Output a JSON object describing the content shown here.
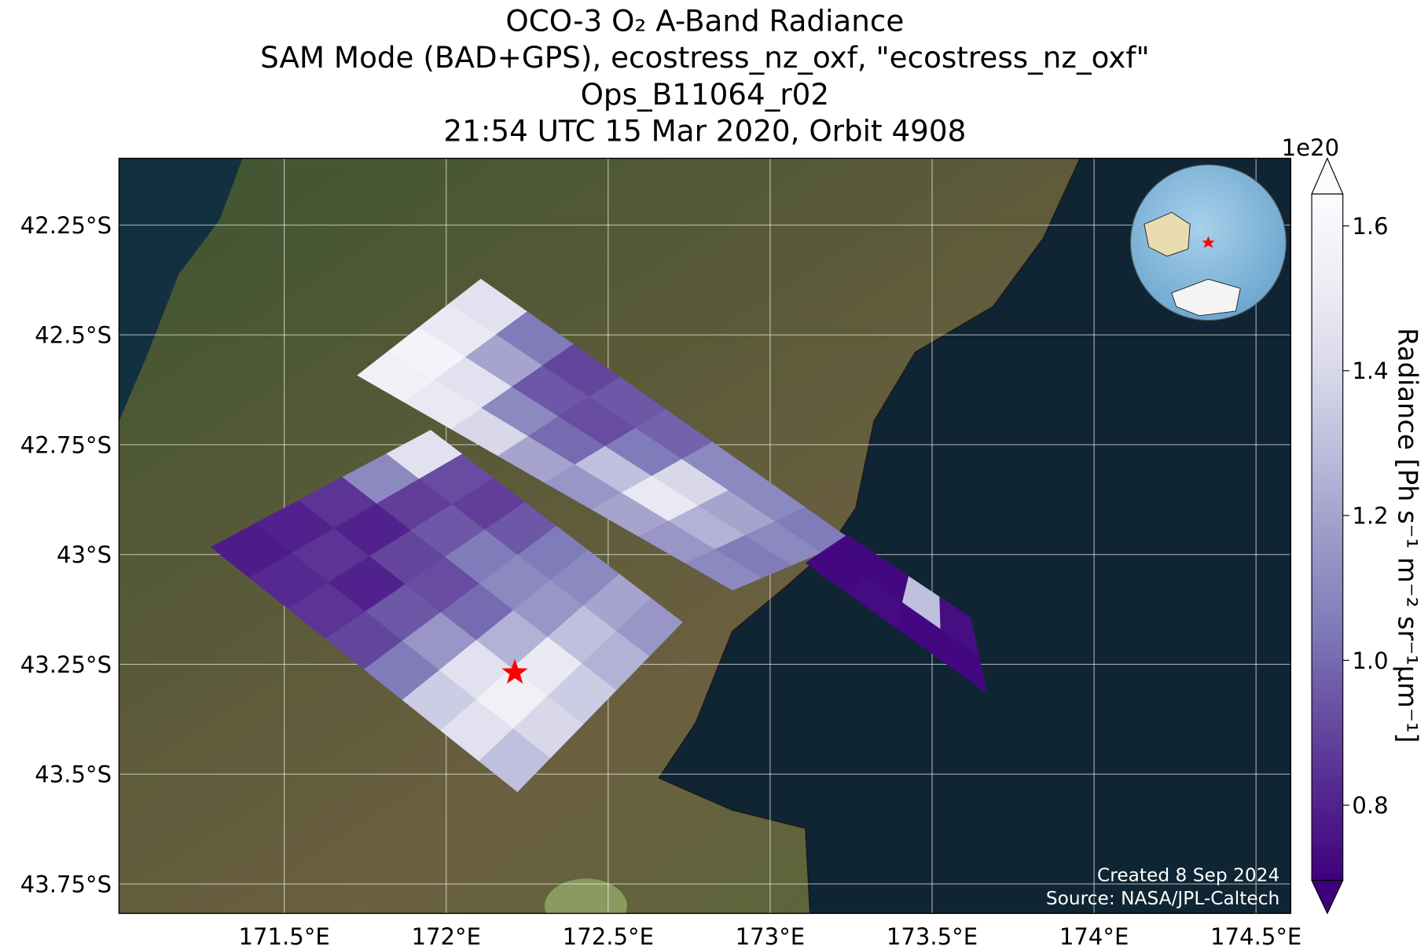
{
  "chart_data": {
    "type": "swath_map",
    "title": [
      "OCO-3 O₂ A-Band Radiance",
      "SAM Mode (BAD+GPS), ecostress_nz_oxf, \"ecostress_nz_oxf\"",
      "Ops_B11064_r02",
      "21:54 UTC 15 Mar 2020, Orbit 4908"
    ],
    "xlim": [
      170.99,
      174.607
    ],
    "ylim": [
      -43.817,
      -42.098
    ],
    "xticks": [
      {
        "value": 171.5,
        "label": "171.5°E"
      },
      {
        "value": 172,
        "label": "172°E"
      },
      {
        "value": 172.5,
        "label": "172.5°E"
      },
      {
        "value": 173,
        "label": "173°E"
      },
      {
        "value": 173.5,
        "label": "173.5°E"
      },
      {
        "value": 174,
        "label": "174°E"
      },
      {
        "value": 174.5,
        "label": "174.5°E"
      }
    ],
    "yticks": [
      {
        "value": -42.25,
        "label": "42.25°S"
      },
      {
        "value": -42.5,
        "label": "42.5°S"
      },
      {
        "value": -42.75,
        "label": "42.75°S"
      },
      {
        "value": -43,
        "label": "43°S"
      },
      {
        "value": -43.25,
        "label": "43.25°S"
      },
      {
        "value": -43.5,
        "label": "43.5°S"
      },
      {
        "value": -43.75,
        "label": "43.75°S"
      }
    ],
    "grid": true,
    "colorbar": {
      "label": "Radiance [Ph s⁻¹ m⁻² sr⁻¹μm⁻¹]",
      "offset_label": "1e20",
      "clim": [
        0.696,
        1.644
      ],
      "ticks": [
        0.8,
        {
          "value": 1.0,
          "label": "1.0"
        },
        1.2,
        1.4,
        1.6
      ],
      "colormap": [
        "#3f007d",
        "#54278f",
        "#6a51a3",
        "#807dba",
        "#9e9ac8",
        "#bcbddc",
        "#dadaeb",
        "#efedf5",
        "#fcfbfd"
      ]
    },
    "swaths": [
      {
        "corners": [
          [
            171.274,
            -42.983
          ],
          [
            171.952,
            -42.717
          ],
          [
            172.729,
            -43.154
          ],
          [
            172.22,
            -43.54
          ]
        ],
        "values": [
          [
            0.78,
            0.8,
            0.85,
            1.1,
            1.45
          ],
          [
            0.82,
            0.85,
            0.8,
            0.88,
            0.92
          ],
          [
            0.85,
            0.8,
            0.9,
            0.95,
            0.88
          ],
          [
            0.9,
            0.95,
            0.92,
            1.05,
            0.95
          ],
          [
            1.05,
            1.15,
            1.0,
            1.1,
            1.05
          ],
          [
            1.35,
            1.45,
            1.25,
            1.15,
            1.1
          ],
          [
            1.45,
            1.55,
            1.5,
            1.3,
            1.2
          ],
          [
            1.3,
            1.4,
            1.35,
            1.25,
            1.15
          ]
        ]
      },
      {
        "corners": [
          [
            171.726,
            -42.592
          ],
          [
            172.107,
            -42.373
          ],
          [
            173.251,
            -42.967
          ],
          [
            172.884,
            -43.081
          ]
        ],
        "values": [
          [
            1.55,
            1.58,
            1.5,
            1.45
          ],
          [
            1.5,
            1.45,
            1.2,
            1.05
          ],
          [
            1.4,
            1.1,
            0.95,
            0.9
          ],
          [
            1.2,
            1.0,
            0.92,
            0.95
          ],
          [
            1.15,
            1.3,
            1.05,
            0.98
          ],
          [
            1.2,
            1.5,
            1.4,
            1.1
          ],
          [
            1.15,
            1.25,
            1.2,
            1.1
          ],
          [
            1.1,
            1.05,
            1.1,
            1.05
          ]
        ]
      },
      {
        "corners": [
          [
            173.11,
            -43.019
          ],
          [
            173.237,
            -42.956
          ],
          [
            173.619,
            -43.144
          ],
          [
            173.669,
            -43.315
          ]
        ],
        "values": [
          [
            0.72,
            0.72
          ],
          [
            0.73,
            0.72
          ],
          [
            0.72,
            1.3
          ],
          [
            0.72,
            0.74
          ]
        ]
      }
    ],
    "target": {
      "lon": 172.212,
      "lat": -43.269,
      "color": "#ff0000"
    },
    "credits": [
      "Created 8 Sep 2024",
      "Source: NASA/JPL-Caltech"
    ]
  }
}
